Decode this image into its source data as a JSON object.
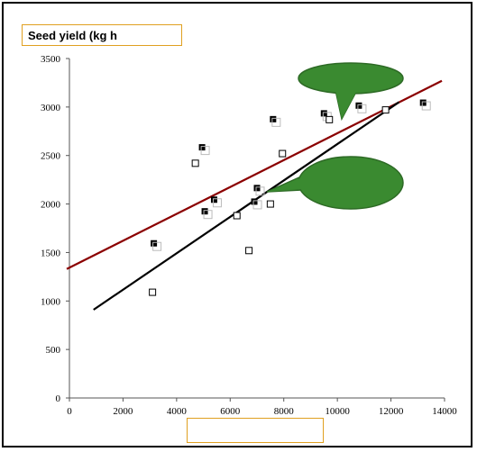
{
  "chart_data": {
    "type": "scatter",
    "title": "Seed yield (kg h",
    "xlabel": "",
    "ylabel": "",
    "xlim": [
      0,
      14000
    ],
    "ylim": [
      0,
      3500
    ],
    "xticks": [
      0,
      2000,
      4000,
      6000,
      8000,
      10000,
      12000,
      14000
    ],
    "yticks": [
      0,
      500,
      1000,
      1500,
      2000,
      2500,
      3000,
      3500
    ],
    "grid": false,
    "series": [
      {
        "marker": "filled-square",
        "color": "#000000",
        "points": [
          {
            "x": 3150,
            "y": 1590
          },
          {
            "x": 4950,
            "y": 2580
          },
          {
            "x": 5050,
            "y": 1920
          },
          {
            "x": 5400,
            "y": 2040
          },
          {
            "x": 6900,
            "y": 2020
          },
          {
            "x": 7000,
            "y": 2160
          },
          {
            "x": 7600,
            "y": 2870
          },
          {
            "x": 9500,
            "y": 2930
          },
          {
            "x": 10800,
            "y": 3010
          },
          {
            "x": 13200,
            "y": 3040
          }
        ]
      },
      {
        "marker": "open-square",
        "color": "#000000",
        "points": [
          {
            "x": 3100,
            "y": 1090
          },
          {
            "x": 4700,
            "y": 2420
          },
          {
            "x": 6250,
            "y": 1880
          },
          {
            "x": 6700,
            "y": 1520
          },
          {
            "x": 7500,
            "y": 2000
          },
          {
            "x": 7950,
            "y": 2520
          },
          {
            "x": 9700,
            "y": 2870
          },
          {
            "x": 11800,
            "y": 2970
          }
        ]
      }
    ],
    "trendlines": [
      {
        "color": "#8b0000",
        "x": [
          -100,
          13900
        ],
        "y": [
          1330,
          3270
        ]
      },
      {
        "color": "#000000",
        "x": [
          900,
          12300
        ],
        "y": [
          910,
          3050
        ]
      }
    ],
    "callouts": [
      {
        "color": "#3a8a30",
        "text": ""
      },
      {
        "color": "#3a8a30",
        "text": ""
      }
    ]
  }
}
